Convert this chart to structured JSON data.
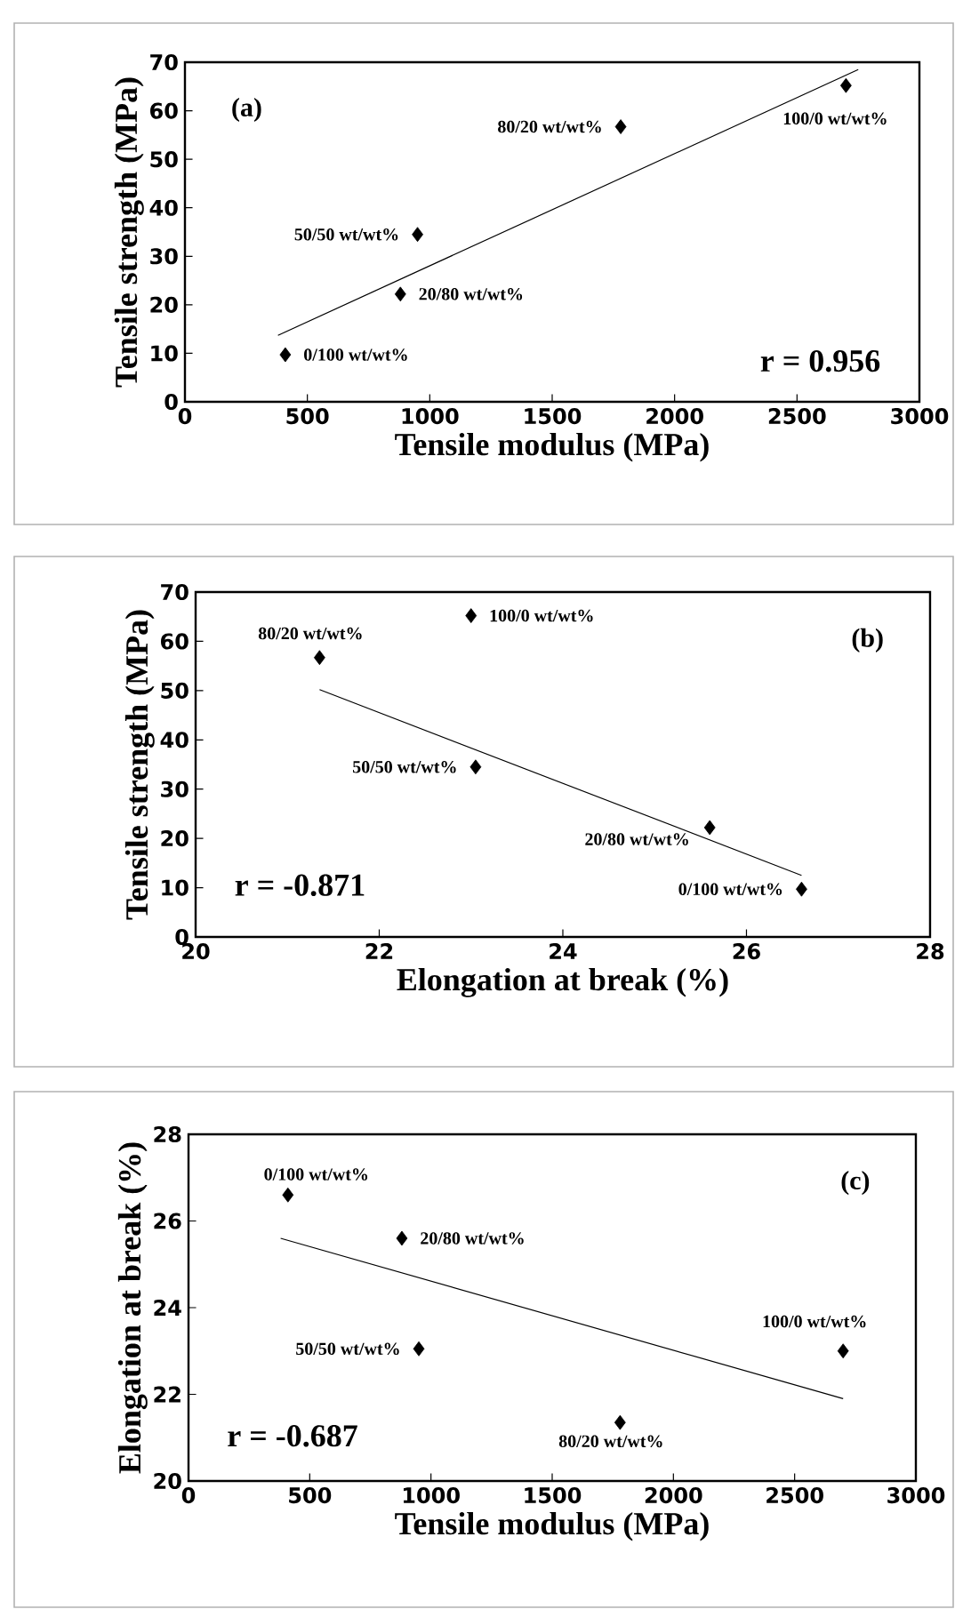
{
  "chart_data": [
    {
      "type": "scatter",
      "xlabel": "Tensile modulus (MPa)",
      "ylabel": "Tensile strength (MPa)",
      "xlim": [
        0,
        3000
      ],
      "ylim": [
        0,
        70
      ],
      "xticks": [
        0,
        500,
        1000,
        1500,
        2000,
        2500,
        3000
      ],
      "yticks": [
        0,
        10,
        20,
        30,
        40,
        50,
        60,
        70
      ],
      "marker": "diamond",
      "series": [
        {
          "type": "scatter",
          "color": "#000000",
          "x": [
            410,
            880,
            950,
            1780,
            2700
          ],
          "values": [
            9.7,
            22.2,
            34.5,
            56.7,
            65.2
          ]
        },
        {
          "type": "line",
          "color": "#000000",
          "marker": "none",
          "x": [
            380,
            2750
          ],
          "values": [
            13.7,
            68.5
          ]
        }
      ],
      "annotations": [
        "(a)",
        "r = 0.956",
        {
          "text": "0/100 wt/wt%",
          "x": 410,
          "y": 9.7
        },
        {
          "text": "20/80 wt/wt%",
          "x": 880,
          "y": 22.2
        },
        {
          "text": "50/50 wt/wt%",
          "x": 950,
          "y": 34.5
        },
        {
          "text": "80/20 wt/wt%",
          "x": 1780,
          "y": 56.7
        },
        {
          "text": "100/0 wt/wt%",
          "x": 2700,
          "y": 65.2
        }
      ]
    },
    {
      "type": "scatter",
      "xlabel": "Elongation at break  (%)",
      "ylabel": "Tensile strength (MPa)",
      "xlim": [
        20,
        28
      ],
      "ylim": [
        0,
        70
      ],
      "xticks": [
        20,
        22,
        24,
        26,
        28
      ],
      "yticks": [
        0,
        10,
        20,
        30,
        40,
        50,
        60,
        70
      ],
      "marker": "diamond",
      "series": [
        {
          "type": "scatter",
          "color": "#000000",
          "x": [
            26.6,
            25.6,
            23.05,
            21.35,
            23.0
          ],
          "values": [
            9.7,
            22.2,
            34.5,
            56.7,
            65.2
          ]
        },
        {
          "type": "line",
          "color": "#000000",
          "marker": "none",
          "x": [
            21.35,
            26.6
          ],
          "values": [
            50.2,
            12.5
          ]
        }
      ],
      "annotations": [
        "(b)",
        "r = -0.871",
        {
          "text": "0/100 wt/wt%",
          "x": 26.6,
          "y": 9.7
        },
        {
          "text": "20/80 wt/wt%",
          "x": 25.6,
          "y": 22.2
        },
        {
          "text": "50/50 wt/wt%",
          "x": 23.05,
          "y": 34.5
        },
        {
          "text": "80/20 wt/wt%",
          "x": 21.35,
          "y": 56.7
        },
        {
          "text": "100/0 wt/wt%",
          "x": 23.0,
          "y": 65.2
        }
      ]
    },
    {
      "type": "scatter",
      "xlabel": "Tensile modulus (MPa)",
      "ylabel": "Elongation at break  (%)",
      "xlim": [
        0,
        3000
      ],
      "ylim": [
        20,
        28
      ],
      "xticks": [
        0,
        500,
        1000,
        1500,
        2000,
        2500,
        3000
      ],
      "yticks": [
        20,
        22,
        24,
        26,
        28
      ],
      "marker": "diamond",
      "series": [
        {
          "type": "scatter",
          "color": "#000000",
          "x": [
            410,
            880,
            950,
            1780,
            2700
          ],
          "values": [
            26.6,
            25.6,
            23.05,
            21.35,
            23.0
          ]
        },
        {
          "type": "line",
          "color": "#000000",
          "marker": "none",
          "x": [
            380,
            2700
          ],
          "values": [
            25.6,
            21.9
          ]
        }
      ],
      "annotations": [
        "(c)",
        "r = -0.687",
        {
          "text": "0/100 wt/wt%",
          "x": 410,
          "y": 26.6
        },
        {
          "text": "20/80 wt/wt%",
          "x": 880,
          "y": 25.6
        },
        {
          "text": "50/50 wt/wt%",
          "x": 950,
          "y": 23.05
        },
        {
          "text": "80/20 wt/wt%",
          "x": 1780,
          "y": 21.35
        },
        {
          "text": "100/0 wt/wt%",
          "x": 2700,
          "y": 23.0
        }
      ]
    }
  ]
}
